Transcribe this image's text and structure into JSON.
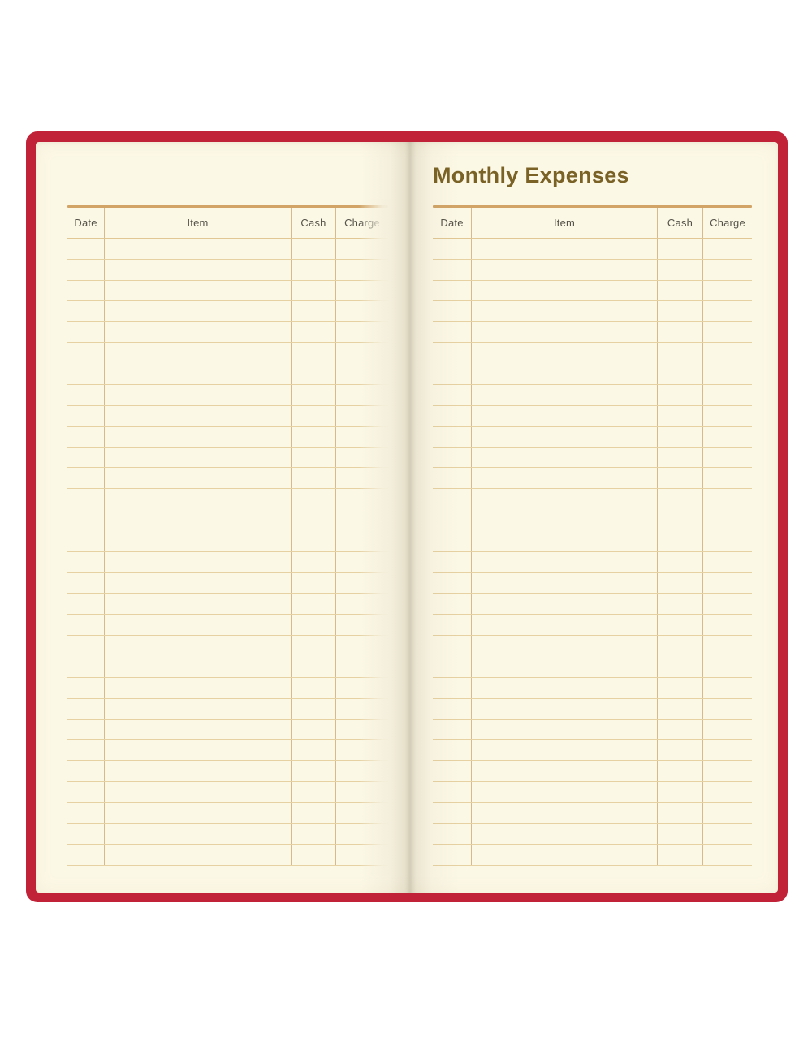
{
  "product": {
    "type": "open-notebook-spread"
  },
  "colors": {
    "cover_red": "#C12238",
    "page_cream": "#FCF8E6",
    "rule_thick": "#D2A567",
    "rule_row": "#E6D1A2",
    "rule_column": "#D9B987",
    "header_text": "#56534A",
    "title_text": "#7A6226"
  },
  "left_page": {
    "table": {
      "columns": [
        "Date",
        "Item",
        "Cash",
        "Charge"
      ],
      "row_count": 30,
      "rows_are_empty": true
    }
  },
  "right_page": {
    "title": "Monthly Expenses",
    "table": {
      "columns": [
        "Date",
        "Item",
        "Cash",
        "Charge"
      ],
      "row_count": 30,
      "rows_are_empty": true
    }
  }
}
